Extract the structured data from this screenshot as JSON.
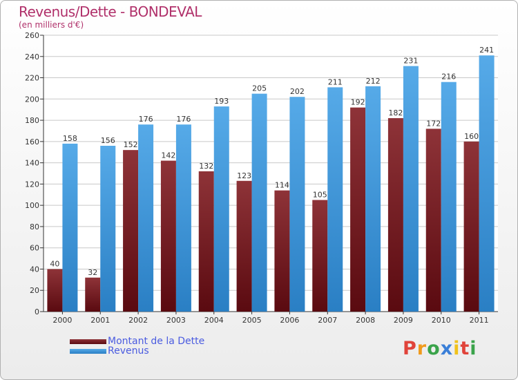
{
  "title": "Revenus/Dette - BONDEVAL",
  "subtitle": "(en milliers d'€)",
  "colors": {
    "dette": "#7a1f24",
    "revenus": "#3a93d8",
    "grid": "#c8c8c8",
    "title": "#b0306a",
    "legend_text": "#4a5be0"
  },
  "legend": {
    "items": [
      {
        "label": "Montant de la Dette"
      },
      {
        "label": "Revenus"
      }
    ]
  },
  "logo": {
    "letters": [
      "P",
      "r",
      "o",
      "x",
      "i",
      "t",
      "i"
    ],
    "colors": [
      "#e0433a",
      "#f09a1c",
      "#3aa34a",
      "#3a7fd8",
      "#f0c21c",
      "#e0433a",
      "#3aa34a"
    ]
  },
  "chart_data": {
    "type": "bar",
    "categories": [
      "2000",
      "2001",
      "2002",
      "2003",
      "2004",
      "2005",
      "2006",
      "2007",
      "2008",
      "2009",
      "2010",
      "2011"
    ],
    "series": [
      {
        "name": "Montant de la Dette",
        "values": [
          40,
          32,
          152,
          142,
          132,
          123,
          114,
          105,
          192,
          182,
          172,
          160
        ]
      },
      {
        "name": "Revenus",
        "values": [
          158,
          156,
          176,
          176,
          193,
          205,
          202,
          211,
          212,
          231,
          216,
          241
        ]
      }
    ],
    "ylim": [
      0,
      260
    ],
    "yticks": [
      0,
      20,
      40,
      60,
      80,
      100,
      120,
      140,
      160,
      180,
      200,
      220,
      240,
      260
    ],
    "grid": true,
    "legend_position": "bottom-left"
  }
}
